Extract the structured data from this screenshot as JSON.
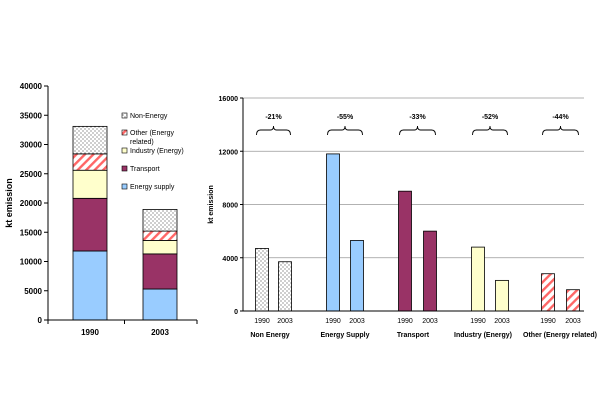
{
  "colors": {
    "energy_supply": "#99ccff",
    "transport": "#993366",
    "industry": "#ffffcc",
    "other_red": "#ff6666",
    "non_energy_dot": "#555555",
    "gridline": "#999999",
    "plot_bg": "#ffffff"
  },
  "chart_data": [
    {
      "id": "stacked",
      "type": "bar",
      "stacked": true,
      "title": "",
      "ylabel": "kt emission",
      "xlabel": "",
      "ylim": [
        0,
        40000
      ],
      "yticks": [
        0,
        5000,
        10000,
        15000,
        20000,
        25000,
        30000,
        35000,
        40000
      ],
      "ytick_labels": [
        "0",
        "5000",
        "10000",
        "15000",
        "20000",
        "25000",
        "30000",
        "35000",
        "40000"
      ],
      "categories": [
        "1990",
        "2003"
      ],
      "series": [
        {
          "name": "Energy supply",
          "key": "energy",
          "values": [
            11800,
            5300
          ]
        },
        {
          "name": "Transport",
          "key": "transport",
          "values": [
            9000,
            6000
          ]
        },
        {
          "name": "Industry (Energy)",
          "key": "industry",
          "values": [
            4800,
            2300
          ]
        },
        {
          "name": "Other (Energy related)",
          "key": "other",
          "values": [
            2800,
            1600
          ]
        },
        {
          "name": "Non-Energy",
          "key": "nonenergy",
          "values": [
            4700,
            3700
          ]
        }
      ],
      "legend": [
        {
          "label": "Non-Energy",
          "key": "nonenergy"
        },
        {
          "label": "Other (Energy",
          "label2": "related)",
          "key": "other"
        },
        {
          "label": "Industry (Energy)",
          "key": "industry"
        },
        {
          "label": "Transport",
          "key": "transport"
        },
        {
          "label": "Energy supply",
          "key": "energy"
        }
      ]
    },
    {
      "id": "grouped",
      "type": "bar",
      "stacked": false,
      "title": "",
      "ylabel": "kt emission",
      "xlabel": "",
      "ylim": [
        0,
        16000
      ],
      "yticks": [
        0,
        4000,
        8000,
        12000,
        16000
      ],
      "ytick_labels": [
        "0",
        "4000",
        "8000",
        "12000",
        "16000"
      ],
      "grid": true,
      "groups": [
        {
          "name": "Non Energy",
          "key": "nonenergy",
          "years": [
            "1990",
            "2003"
          ],
          "values": [
            4700,
            3700
          ],
          "change": "-21%"
        },
        {
          "name": "Energy Supply",
          "key": "energy",
          "years": [
            "1990",
            "2003"
          ],
          "values": [
            11800,
            5300
          ],
          "change": "-55%"
        },
        {
          "name": "Transport",
          "key": "transport",
          "years": [
            "1990",
            "2003"
          ],
          "values": [
            9000,
            6000
          ],
          "change": "-33%"
        },
        {
          "name": "Industry (Energy)",
          "key": "industry",
          "years": [
            "1990",
            "2003"
          ],
          "values": [
            4800,
            2300
          ],
          "change": "-52%"
        },
        {
          "name": "Other (Energy related)",
          "key": "other",
          "years": [
            "1990",
            "2003"
          ],
          "values": [
            2800,
            1600
          ],
          "change": "-44%"
        }
      ]
    }
  ]
}
